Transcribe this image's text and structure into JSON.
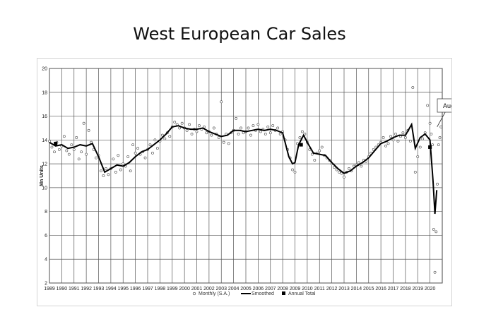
{
  "title": "West European Car Sales",
  "chart_data": {
    "type": "line",
    "title": "West European Car Sales",
    "xlabel": "",
    "ylabel": "Mn Units",
    "xlim": [
      1989,
      2021
    ],
    "ylim": [
      2,
      20
    ],
    "y_ticks": [
      2,
      4,
      6,
      8,
      10,
      12,
      14,
      16,
      18,
      20
    ],
    "x_ticks": [
      "1989",
      "1990",
      "1991",
      "1992",
      "1993",
      "1994",
      "1995",
      "1996",
      "1997",
      "1998",
      "1999",
      "2000",
      "2001",
      "2002",
      "2003",
      "2004",
      "2005",
      "2006",
      "2007",
      "2008",
      "2009",
      "2010",
      "2011",
      "2012",
      "2013",
      "2014",
      "2015",
      "2016",
      "2017",
      "2018",
      "2019",
      "2020"
    ],
    "grid": true,
    "legend_position": "bottom",
    "annotation": {
      "text": "Aug",
      "x": 2020.58,
      "y": 15.1
    },
    "series": [
      {
        "name": "Monthly (S.A.)",
        "marker": "circle-open",
        "points": [
          [
            1989.0,
            13.9
          ],
          [
            1989.2,
            13.4
          ],
          [
            1989.4,
            13.0
          ],
          [
            1989.6,
            13.8
          ],
          [
            1989.8,
            13.2
          ],
          [
            1990.0,
            13.5
          ],
          [
            1990.2,
            14.3
          ],
          [
            1990.4,
            13.1
          ],
          [
            1990.6,
            12.8
          ],
          [
            1990.8,
            13.6
          ],
          [
            1991.0,
            13.2
          ],
          [
            1991.2,
            14.2
          ],
          [
            1991.4,
            12.4
          ],
          [
            1991.6,
            13.0
          ],
          [
            1991.8,
            15.4
          ],
          [
            1992.0,
            12.8
          ],
          [
            1992.2,
            14.8
          ],
          [
            1992.4,
            13.8
          ],
          [
            1992.6,
            13.2
          ],
          [
            1992.8,
            12.5
          ],
          [
            1993.0,
            12.7
          ],
          [
            1993.2,
            11.4
          ],
          [
            1993.4,
            11.0
          ],
          [
            1993.6,
            11.6
          ],
          [
            1993.8,
            11.1
          ],
          [
            1994.0,
            11.6
          ],
          [
            1994.2,
            12.4
          ],
          [
            1994.4,
            11.3
          ],
          [
            1994.6,
            12.7
          ],
          [
            1994.8,
            11.5
          ],
          [
            1995.0,
            12.0
          ],
          [
            1995.2,
            11.8
          ],
          [
            1995.4,
            12.6
          ],
          [
            1995.6,
            11.4
          ],
          [
            1995.8,
            13.6
          ],
          [
            1996.0,
            12.9
          ],
          [
            1996.2,
            13.3
          ],
          [
            1996.4,
            12.8
          ],
          [
            1996.6,
            13.0
          ],
          [
            1996.8,
            12.5
          ],
          [
            1997.0,
            13.2
          ],
          [
            1997.2,
            13.6
          ],
          [
            1997.4,
            12.9
          ],
          [
            1997.6,
            14.0
          ],
          [
            1997.8,
            13.3
          ],
          [
            1998.0,
            13.9
          ],
          [
            1998.2,
            14.4
          ],
          [
            1998.4,
            14.1
          ],
          [
            1998.6,
            14.6
          ],
          [
            1998.8,
            14.3
          ],
          [
            1999.0,
            15.1
          ],
          [
            1999.2,
            15.5
          ],
          [
            1999.4,
            15.3
          ],
          [
            1999.6,
            15.0
          ],
          [
            1999.8,
            15.4
          ],
          [
            2000.0,
            15.0
          ],
          [
            2000.2,
            14.8
          ],
          [
            2000.4,
            15.3
          ],
          [
            2000.6,
            14.5
          ],
          [
            2000.8,
            14.9
          ],
          [
            2001.0,
            14.7
          ],
          [
            2001.2,
            15.2
          ],
          [
            2001.4,
            14.9
          ],
          [
            2001.6,
            15.1
          ],
          [
            2001.8,
            14.6
          ],
          [
            2002.0,
            14.7
          ],
          [
            2002.2,
            14.4
          ],
          [
            2002.4,
            15.0
          ],
          [
            2002.6,
            14.5
          ],
          [
            2002.8,
            14.2
          ],
          [
            2003.0,
            17.2
          ],
          [
            2003.2,
            13.8
          ],
          [
            2003.4,
            14.5
          ],
          [
            2003.6,
            13.7
          ],
          [
            2003.8,
            14.6
          ],
          [
            2004.0,
            14.8
          ],
          [
            2004.2,
            15.8
          ],
          [
            2004.4,
            14.5
          ],
          [
            2004.6,
            15.0
          ],
          [
            2004.8,
            14.6
          ],
          [
            2005.0,
            14.7
          ],
          [
            2005.2,
            15.0
          ],
          [
            2005.4,
            14.4
          ],
          [
            2005.6,
            15.2
          ],
          [
            2005.8,
            14.8
          ],
          [
            2006.0,
            15.3
          ],
          [
            2006.2,
            14.7
          ],
          [
            2006.4,
            14.9
          ],
          [
            2006.6,
            14.5
          ],
          [
            2006.8,
            15.1
          ],
          [
            2007.0,
            14.6
          ],
          [
            2007.2,
            15.2
          ],
          [
            2007.4,
            14.8
          ],
          [
            2007.6,
            15.0
          ],
          [
            2007.8,
            14.5
          ],
          [
            2008.0,
            14.7
          ],
          [
            2008.2,
            14.0
          ],
          [
            2008.4,
            13.2
          ],
          [
            2008.6,
            12.5
          ],
          [
            2008.8,
            11.5
          ],
          [
            2009.0,
            11.3
          ],
          [
            2009.2,
            13.7
          ],
          [
            2009.4,
            14.2
          ],
          [
            2009.6,
            14.7
          ],
          [
            2009.8,
            14.5
          ],
          [
            2010.0,
            13.8
          ],
          [
            2010.2,
            13.2
          ],
          [
            2010.4,
            12.8
          ],
          [
            2010.6,
            12.3
          ],
          [
            2010.8,
            12.9
          ],
          [
            2011.0,
            13.1
          ],
          [
            2011.2,
            13.4
          ],
          [
            2011.4,
            12.7
          ],
          [
            2011.6,
            12.5
          ],
          [
            2011.8,
            12.3
          ],
          [
            2012.0,
            12.0
          ],
          [
            2012.2,
            11.7
          ],
          [
            2012.4,
            11.5
          ],
          [
            2012.6,
            11.3
          ],
          [
            2012.8,
            11.2
          ],
          [
            2013.0,
            10.9
          ],
          [
            2013.2,
            11.3
          ],
          [
            2013.4,
            11.6
          ],
          [
            2013.6,
            11.4
          ],
          [
            2013.8,
            11.8
          ],
          [
            2014.0,
            11.9
          ],
          [
            2014.2,
            12.1
          ],
          [
            2014.4,
            11.8
          ],
          [
            2014.6,
            12.3
          ],
          [
            2014.8,
            12.2
          ],
          [
            2015.0,
            12.6
          ],
          [
            2015.2,
            12.9
          ],
          [
            2015.4,
            13.2
          ],
          [
            2015.6,
            13.4
          ],
          [
            2015.8,
            13.6
          ],
          [
            2016.0,
            13.8
          ],
          [
            2016.2,
            14.2
          ],
          [
            2016.4,
            13.5
          ],
          [
            2016.6,
            13.7
          ],
          [
            2016.8,
            14.3
          ],
          [
            2017.0,
            14.0
          ],
          [
            2017.2,
            14.5
          ],
          [
            2017.4,
            13.9
          ],
          [
            2017.6,
            14.3
          ],
          [
            2017.8,
            14.6
          ],
          [
            2018.0,
            14.2
          ],
          [
            2018.2,
            14.8
          ],
          [
            2018.4,
            13.9
          ],
          [
            2018.6,
            18.4
          ],
          [
            2018.8,
            11.3
          ],
          [
            2019.0,
            12.6
          ],
          [
            2019.2,
            13.4
          ],
          [
            2019.4,
            14.1
          ],
          [
            2019.6,
            14.6
          ],
          [
            2019.8,
            16.9
          ],
          [
            2020.0,
            15.4
          ],
          [
            2020.1,
            14.5
          ],
          [
            2020.2,
            13.6
          ],
          [
            2020.3,
            6.5
          ],
          [
            2020.4,
            2.9
          ],
          [
            2020.5,
            6.3
          ],
          [
            2020.6,
            10.3
          ],
          [
            2020.7,
            13.6
          ],
          [
            2020.8,
            14.2
          ],
          [
            2020.9,
            15.1
          ]
        ]
      },
      {
        "name": "Smoothed",
        "marker": "line",
        "points": [
          [
            1989.0,
            13.8
          ],
          [
            1989.5,
            13.5
          ],
          [
            1990.0,
            13.6
          ],
          [
            1990.5,
            13.3
          ],
          [
            1991.0,
            13.4
          ],
          [
            1991.5,
            13.6
          ],
          [
            1992.0,
            13.5
          ],
          [
            1992.5,
            13.7
          ],
          [
            1993.0,
            12.6
          ],
          [
            1993.5,
            11.3
          ],
          [
            1994.0,
            11.6
          ],
          [
            1994.5,
            11.9
          ],
          [
            1995.0,
            11.8
          ],
          [
            1995.5,
            12.1
          ],
          [
            1996.0,
            12.6
          ],
          [
            1996.5,
            13.0
          ],
          [
            1997.0,
            13.2
          ],
          [
            1997.5,
            13.6
          ],
          [
            1998.0,
            14.0
          ],
          [
            1998.5,
            14.5
          ],
          [
            1999.0,
            15.1
          ],
          [
            1999.5,
            15.2
          ],
          [
            2000.0,
            15.0
          ],
          [
            2000.5,
            14.9
          ],
          [
            2001.0,
            14.9
          ],
          [
            2001.5,
            15.0
          ],
          [
            2002.0,
            14.7
          ],
          [
            2002.5,
            14.5
          ],
          [
            2003.0,
            14.3
          ],
          [
            2003.5,
            14.4
          ],
          [
            2004.0,
            14.8
          ],
          [
            2004.5,
            14.8
          ],
          [
            2005.0,
            14.7
          ],
          [
            2005.5,
            14.8
          ],
          [
            2006.0,
            14.9
          ],
          [
            2006.5,
            14.8
          ],
          [
            2007.0,
            14.9
          ],
          [
            2007.5,
            14.8
          ],
          [
            2008.0,
            14.6
          ],
          [
            2008.5,
            12.6
          ],
          [
            2008.8,
            12.0
          ],
          [
            2009.0,
            12.1
          ],
          [
            2009.3,
            13.6
          ],
          [
            2009.7,
            14.4
          ],
          [
            2010.0,
            13.8
          ],
          [
            2010.5,
            12.9
          ],
          [
            2011.0,
            12.8
          ],
          [
            2011.5,
            12.7
          ],
          [
            2012.0,
            12.1
          ],
          [
            2012.5,
            11.6
          ],
          [
            2013.0,
            11.2
          ],
          [
            2013.5,
            11.4
          ],
          [
            2014.0,
            11.8
          ],
          [
            2014.5,
            12.1
          ],
          [
            2015.0,
            12.5
          ],
          [
            2015.5,
            13.1
          ],
          [
            2016.0,
            13.7
          ],
          [
            2016.5,
            13.9
          ],
          [
            2017.0,
            14.2
          ],
          [
            2017.5,
            14.4
          ],
          [
            2018.0,
            14.4
          ],
          [
            2018.5,
            15.3
          ],
          [
            2018.8,
            13.3
          ],
          [
            2019.2,
            14.2
          ],
          [
            2019.6,
            14.5
          ],
          [
            2020.0,
            14.0
          ],
          [
            2020.25,
            10.5
          ],
          [
            2020.4,
            7.8
          ],
          [
            2020.55,
            9.8
          ]
        ]
      },
      {
        "name": "Annual Total",
        "marker": "square",
        "points": [
          [
            1989.5,
            13.7
          ],
          [
            2009.5,
            13.6
          ],
          [
            2020.0,
            13.4
          ]
        ]
      }
    ]
  }
}
